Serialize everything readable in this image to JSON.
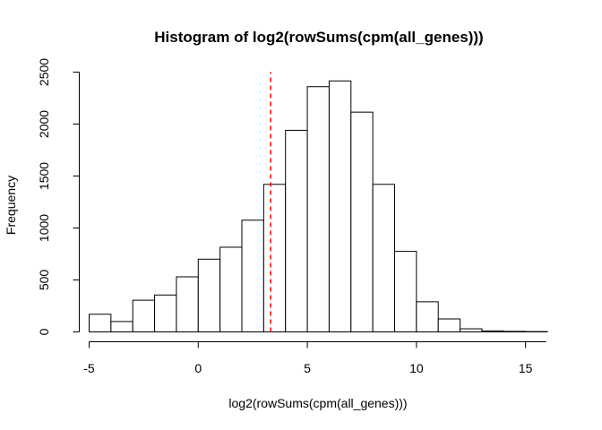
{
  "chart_data": {
    "type": "bar",
    "title": "Histogram of log2(rowSums(cpm(all_genes)))",
    "xlabel": "log2(rowSums(cpm(all_genes)))",
    "ylabel": "Frequency",
    "bin_edges": [
      -5,
      -4,
      -3,
      -2,
      -1,
      0,
      1,
      2,
      3,
      4,
      5,
      6,
      7,
      8,
      9,
      10,
      11,
      12,
      13,
      14,
      15,
      16
    ],
    "values": [
      170,
      100,
      305,
      355,
      530,
      700,
      815,
      1075,
      1420,
      1940,
      2360,
      2415,
      2115,
      1420,
      775,
      290,
      125,
      30,
      10,
      5,
      3
    ],
    "xlim": [
      -5,
      16
    ],
    "ylim": [
      0,
      2500
    ],
    "x_ticks": [
      -5,
      0,
      5,
      10,
      15
    ],
    "y_ticks": [
      0,
      500,
      1000,
      1500,
      2000,
      2500
    ],
    "x_tick_labels": [
      "-5",
      "0",
      "5",
      "10",
      "15"
    ],
    "y_tick_labels": [
      "0",
      "500",
      "1000",
      "1500",
      "2000",
      "2500"
    ],
    "reference_line": {
      "x": 3.32,
      "style": "dashed",
      "color": "#ff0000"
    },
    "grid": false
  }
}
